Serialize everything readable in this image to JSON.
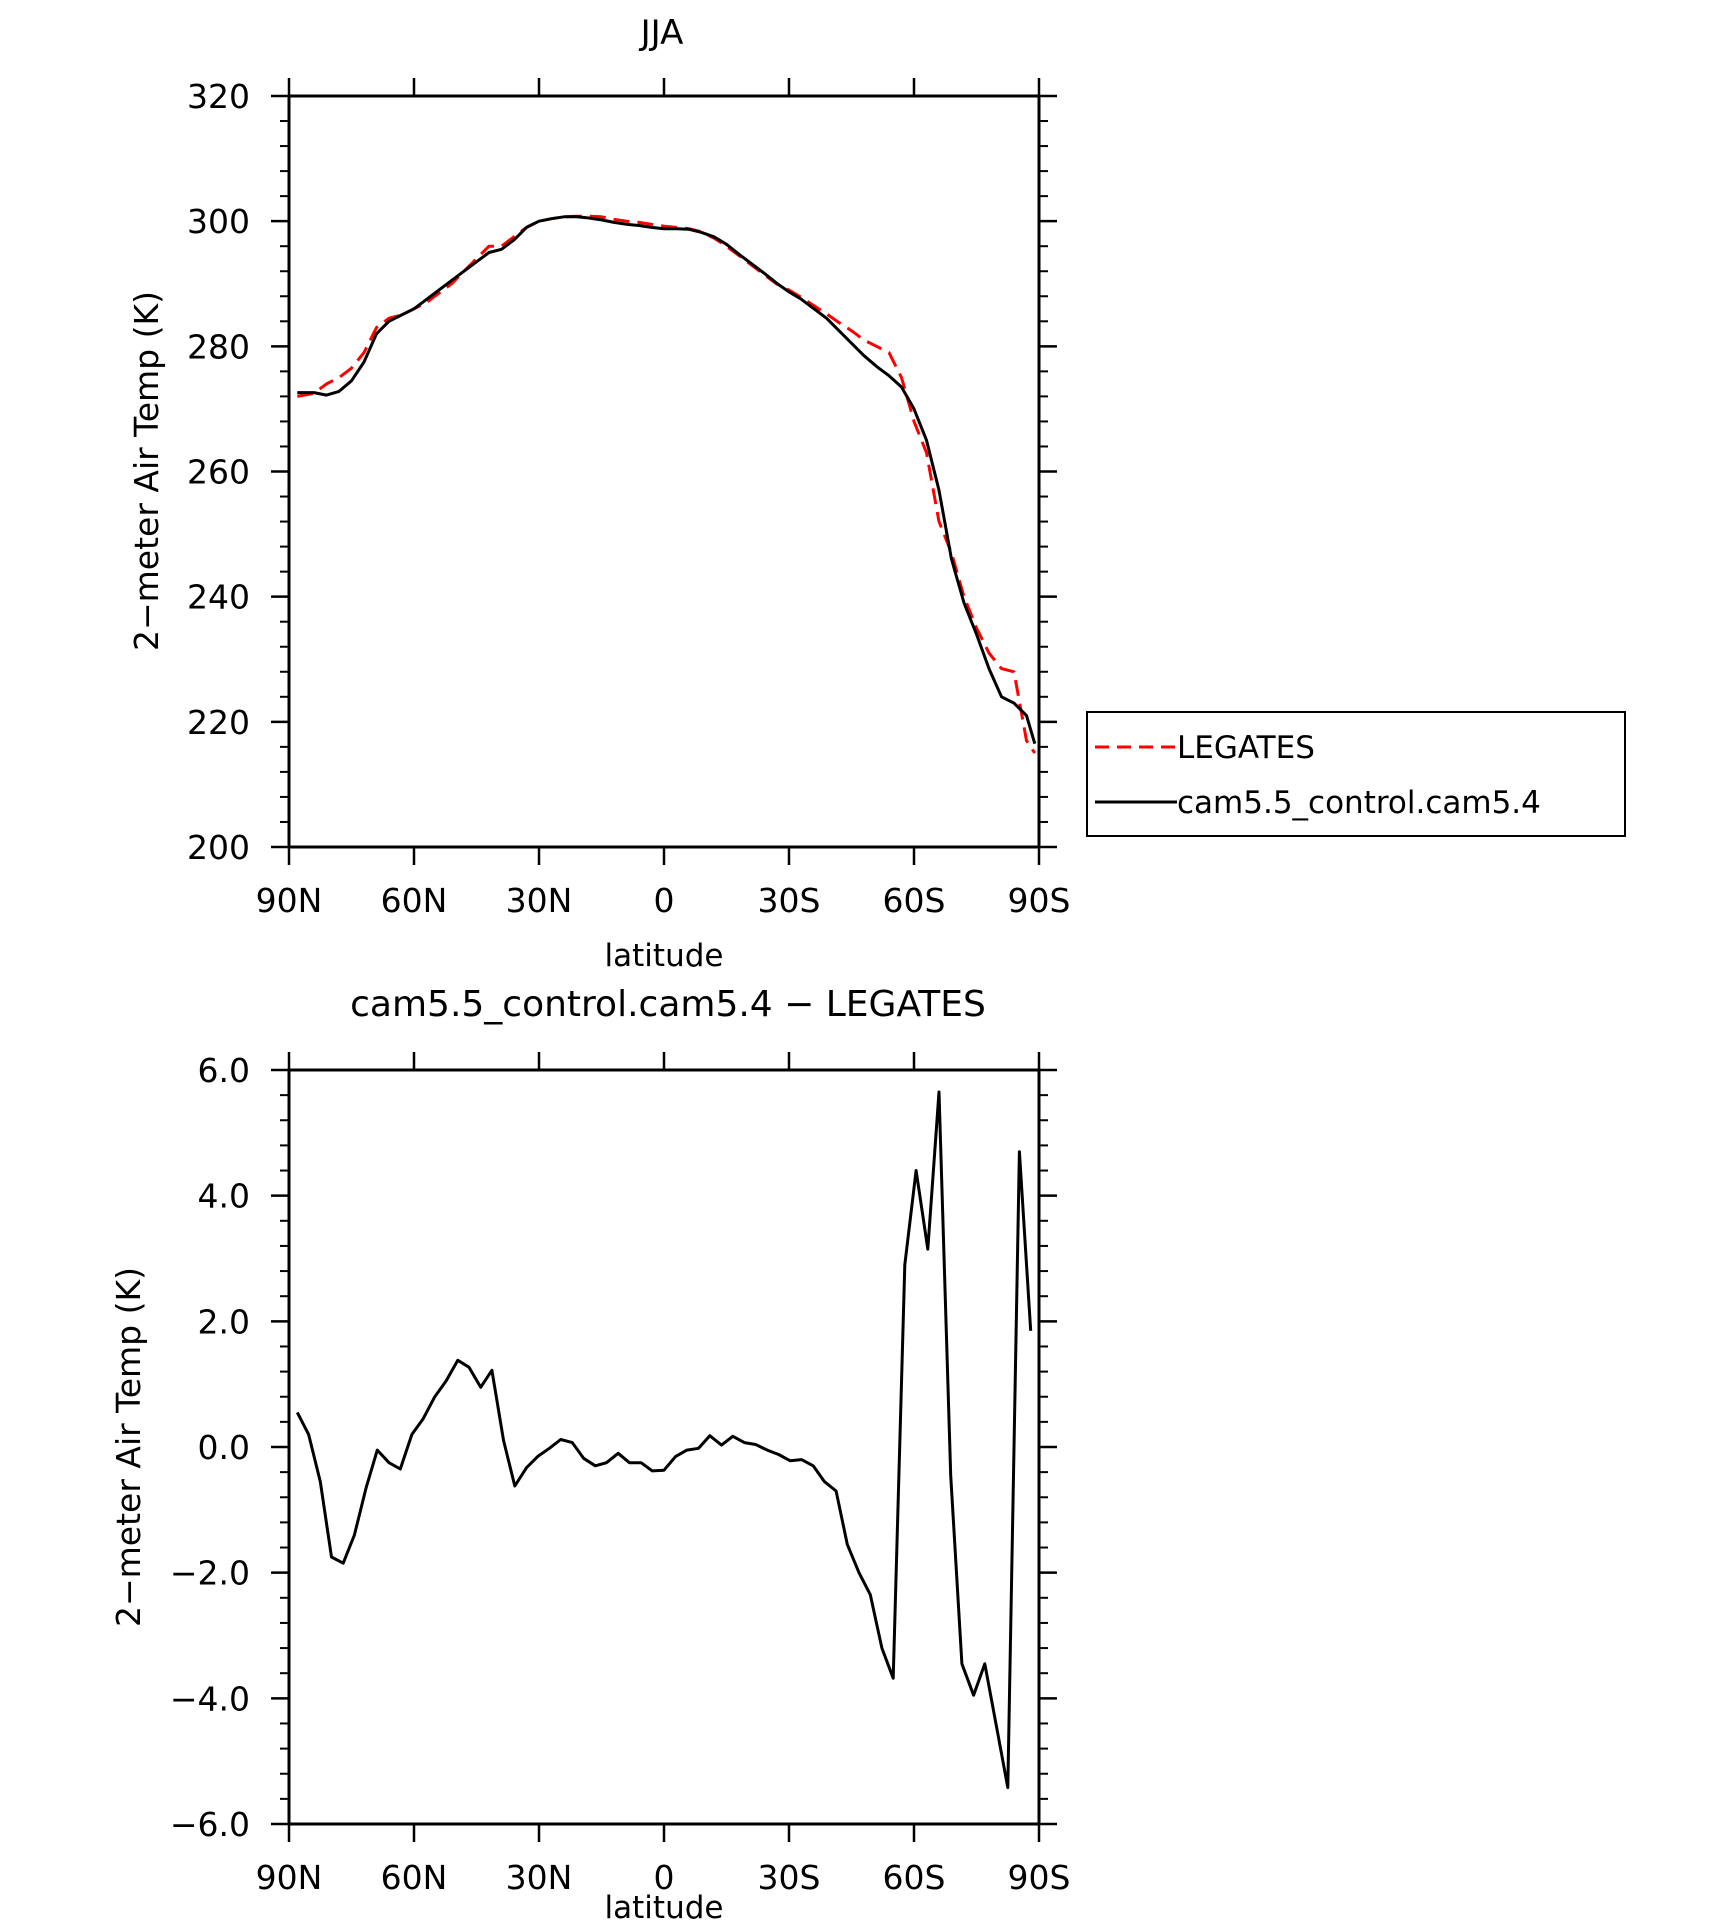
{
  "chart_data": [
    {
      "type": "line",
      "title": "JJA",
      "xlabel": "latitude",
      "ylabel": "2−meter Air Temp (K)",
      "xlim": [
        90,
        -90
      ],
      "ylim": [
        200,
        320
      ],
      "x_ticks": [
        90,
        60,
        30,
        0,
        -30,
        -60,
        -90
      ],
      "x_tick_labels": [
        "90N",
        "60N",
        "30N",
        "0",
        "30S",
        "60S",
        "90S"
      ],
      "y_ticks": [
        200,
        220,
        240,
        260,
        280,
        300,
        320
      ],
      "y_tick_labels": [
        "200",
        "220",
        "240",
        "260",
        "280",
        "300",
        "320"
      ],
      "grid": false,
      "legend_position": "right",
      "series": [
        {
          "name": "LEGATES",
          "color": "#ff0000",
          "style": "dashed",
          "points": [
            [
              88,
              272
            ],
            [
              84,
              272.5
            ],
            [
              81,
              274
            ],
            [
              78,
              275
            ],
            [
              75,
              276.5
            ],
            [
              72,
              279
            ],
            [
              69,
              283
            ],
            [
              66,
              284.5
            ],
            [
              63,
              285
            ],
            [
              60,
              286
            ],
            [
              57,
              287
            ],
            [
              54,
              288.5
            ],
            [
              51,
              290
            ],
            [
              48,
              292
            ],
            [
              45,
              294
            ],
            [
              42,
              296
            ],
            [
              39,
              296
            ],
            [
              36,
              297.5
            ],
            [
              33,
              299
            ],
            [
              30,
              300
            ],
            [
              27,
              300.4
            ],
            [
              24,
              300.7
            ],
            [
              21,
              300.8
            ],
            [
              18,
              300.8
            ],
            [
              15,
              300.7
            ],
            [
              12,
              300.3
            ],
            [
              9,
              300
            ],
            [
              6,
              299.8
            ],
            [
              3,
              299.5
            ],
            [
              0,
              299.2
            ],
            [
              -3,
              299
            ],
            [
              -6,
              298.8
            ],
            [
              -9,
              298.3
            ],
            [
              -12,
              297.3
            ],
            [
              -15,
              296
            ],
            [
              -18,
              294.5
            ],
            [
              -21,
              293
            ],
            [
              -24,
              291.5
            ],
            [
              -27,
              290
            ],
            [
              -30,
              289
            ],
            [
              -33,
              287.8
            ],
            [
              -36,
              286.5
            ],
            [
              -39,
              285.2
            ],
            [
              -42,
              283.8
            ],
            [
              -45,
              282.5
            ],
            [
              -48,
              281
            ],
            [
              -51,
              280
            ],
            [
              -54,
              279
            ],
            [
              -57,
              275
            ],
            [
              -60,
              268
            ],
            [
              -63,
              263
            ],
            [
              -66,
              252
            ],
            [
              -69,
              247
            ],
            [
              -72,
              240
            ],
            [
              -75,
              235
            ],
            [
              -78,
              231
            ],
            [
              -81,
              228.5
            ],
            [
              -84,
              228
            ],
            [
              -87,
              217
            ],
            [
              -89,
              215
            ]
          ]
        },
        {
          "name": "cam5.5_control.cam5.4",
          "color": "#000000",
          "style": "solid",
          "points": [
            [
              88,
              272.6
            ],
            [
              84,
              272.6
            ],
            [
              81,
              272.2
            ],
            [
              78,
              272.8
            ],
            [
              75,
              274.5
            ],
            [
              72,
              277.5
            ],
            [
              69,
              282
            ],
            [
              66,
              284
            ],
            [
              63,
              285
            ],
            [
              60,
              286
            ],
            [
              57,
              287.5
            ],
            [
              54,
              289
            ],
            [
              51,
              290.5
            ],
            [
              48,
              292
            ],
            [
              45,
              293.5
            ],
            [
              42,
              295
            ],
            [
              39,
              295.5
            ],
            [
              36,
              297
            ],
            [
              33,
              299
            ],
            [
              30,
              300
            ],
            [
              27,
              300.4
            ],
            [
              24,
              300.7
            ],
            [
              21,
              300.7
            ],
            [
              18,
              300.5
            ],
            [
              15,
              300.2
            ],
            [
              12,
              299.8
            ],
            [
              9,
              299.5
            ],
            [
              6,
              299.3
            ],
            [
              3,
              299
            ],
            [
              0,
              298.8
            ],
            [
              -3,
              298.8
            ],
            [
              -6,
              298.7
            ],
            [
              -9,
              298.2
            ],
            [
              -12,
              297.5
            ],
            [
              -15,
              296.3
            ],
            [
              -18,
              294.7
            ],
            [
              -21,
              293.2
            ],
            [
              -24,
              291.7
            ],
            [
              -27,
              290.1
            ],
            [
              -30,
              288.7
            ],
            [
              -33,
              287.5
            ],
            [
              -36,
              286
            ],
            [
              -39,
              284.5
            ],
            [
              -42,
              282.5
            ],
            [
              -45,
              280.5
            ],
            [
              -48,
              278.5
            ],
            [
              -51,
              276.8
            ],
            [
              -54,
              275.3
            ],
            [
              -57,
              273.5
            ],
            [
              -60,
              270
            ],
            [
              -63,
              265
            ],
            [
              -66,
              257
            ],
            [
              -69,
              246
            ],
            [
              -72,
              239
            ],
            [
              -75,
              234
            ],
            [
              -78,
              228.5
            ],
            [
              -81,
              224
            ],
            [
              -84,
              223
            ],
            [
              -87,
              221
            ],
            [
              -89,
              216.5
            ]
          ]
        }
      ]
    },
    {
      "type": "line",
      "title": "cam5.5_control.cam5.4 − LEGATES",
      "xlabel": "latitude",
      "ylabel": "2−meter Air Temp (K)",
      "xlim": [
        90,
        -90
      ],
      "ylim": [
        -6,
        6
      ],
      "x_ticks": [
        90,
        60,
        30,
        0,
        -30,
        -60,
        -90
      ],
      "x_tick_labels": [
        "90N",
        "60N",
        "30N",
        "0",
        "30S",
        "60S",
        "90S"
      ],
      "y_ticks": [
        -6,
        -4,
        -2,
        0,
        2,
        4,
        6
      ],
      "y_tick_labels": [
        "−6.0",
        "−4.0",
        "−2.0",
        "0.0",
        "2.0",
        "4.0",
        "6.0"
      ],
      "grid": false,
      "series": [
        {
          "color": "#000000",
          "style": "solid",
          "points": [
            [
              88,
              0.55
            ],
            [
              85.3,
              0.2
            ],
            [
              82.5,
              -0.55
            ],
            [
              79.8,
              -1.75
            ],
            [
              77,
              -1.85
            ],
            [
              74.3,
              -1.4
            ],
            [
              71.5,
              -0.65
            ],
            [
              68.8,
              -0.05
            ],
            [
              66,
              -0.25
            ],
            [
              63.3,
              -0.35
            ],
            [
              60.5,
              0.2
            ],
            [
              57.8,
              0.45
            ],
            [
              55,
              0.8
            ],
            [
              52.3,
              1.05
            ],
            [
              49.5,
              1.38
            ],
            [
              46.8,
              1.27
            ],
            [
              44,
              0.95
            ],
            [
              41.3,
              1.22
            ],
            [
              38.5,
              0.1
            ],
            [
              35.8,
              -0.62
            ],
            [
              33,
              -0.33
            ],
            [
              30.3,
              -0.15
            ],
            [
              27.5,
              -0.02
            ],
            [
              24.8,
              0.12
            ],
            [
              22,
              0.07
            ],
            [
              19.3,
              -0.18
            ],
            [
              16.5,
              -0.3
            ],
            [
              13.8,
              -0.25
            ],
            [
              11,
              -0.1
            ],
            [
              8.3,
              -0.25
            ],
            [
              5.5,
              -0.25
            ],
            [
              2.8,
              -0.38
            ],
            [
              0,
              -0.37
            ],
            [
              -2.8,
              -0.15
            ],
            [
              -5.5,
              -0.05
            ],
            [
              -8.3,
              -0.02
            ],
            [
              -11,
              0.18
            ],
            [
              -13.8,
              0.03
            ],
            [
              -16.5,
              0.17
            ],
            [
              -19.3,
              0.07
            ],
            [
              -22,
              0.04
            ],
            [
              -24.8,
              -0.05
            ],
            [
              -27.5,
              -0.12
            ],
            [
              -30.3,
              -0.22
            ],
            [
              -33,
              -0.2
            ],
            [
              -35.8,
              -0.3
            ],
            [
              -38.5,
              -0.55
            ],
            [
              -41.3,
              -0.7
            ],
            [
              -44,
              -1.55
            ],
            [
              -46.8,
              -2.0
            ],
            [
              -49.5,
              -2.35
            ],
            [
              -52.3,
              -3.2
            ],
            [
              -55,
              -3.68
            ],
            [
              -57.8,
              2.9
            ],
            [
              -60.5,
              4.4
            ],
            [
              -63.3,
              3.15
            ],
            [
              -66,
              5.65
            ],
            [
              -68.8,
              -0.45
            ],
            [
              -71.5,
              -3.45
            ],
            [
              -74.3,
              -3.95
            ],
            [
              -77,
              -3.45
            ],
            [
              -79.8,
              -4.45
            ],
            [
              -82.5,
              -5.42
            ],
            [
              -85.3,
              4.7
            ],
            [
              -88,
              1.85
            ]
          ]
        }
      ]
    }
  ],
  "legend": {
    "items": [
      {
        "label": "LEGATES",
        "color": "#ff0000",
        "style": "dashed"
      },
      {
        "label": "cam5.5_control.cam5.4",
        "color": "#000000",
        "style": "solid"
      }
    ]
  }
}
